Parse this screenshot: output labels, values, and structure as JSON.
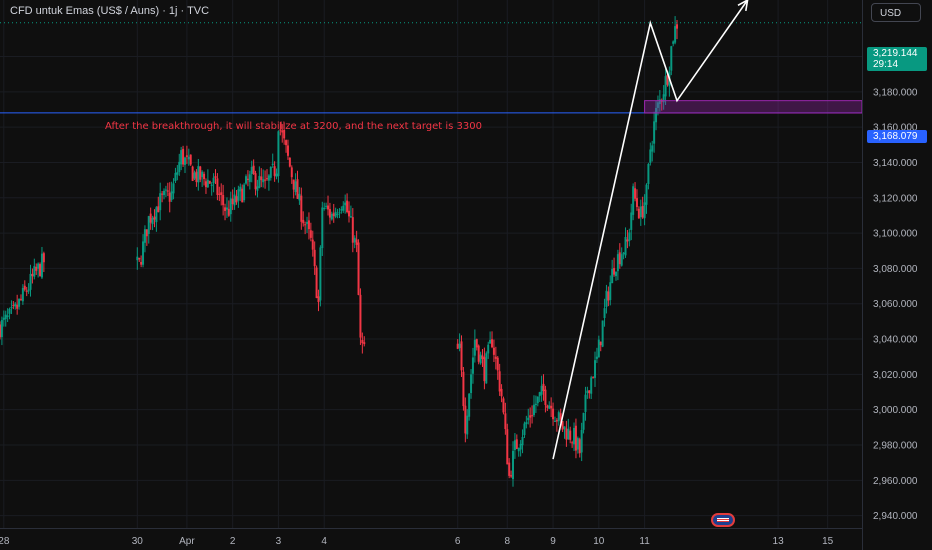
{
  "header": {
    "title": "CFD untuk Emas (US$ / Auns) · 1j · TVC",
    "currency": "USD"
  },
  "annotation": "After the breakthrough, it will stabilize at 3200, and the next target is 3300",
  "price_tag": {
    "price": "3,219.144",
    "countdown": "29:14"
  },
  "level_tag": "3,168.079",
  "colors": {
    "bg": "#0f0f0f",
    "up": "#089981",
    "down": "#f23645",
    "level": "#2962ff",
    "zone": "#9c27b0",
    "arrow": "#ffffff"
  },
  "icons": {
    "event": "us-flag-icon"
  },
  "chart_data": {
    "type": "candlestick",
    "ylim": [
      2933,
      3232
    ],
    "x_range": [
      "Mar 27 22:00",
      "Apr 15 18:00"
    ],
    "x_ticks": [
      {
        "label": "28",
        "t": "Mar 28 00:00"
      },
      {
        "label": "30",
        "t": "Mar 30 22:00"
      },
      {
        "label": "Apr",
        "t": "Apr 01 00:00"
      },
      {
        "label": "2",
        "t": "Apr 02 00:00"
      },
      {
        "label": "3",
        "t": "Apr 03 00:00"
      },
      {
        "label": "4",
        "t": "Apr 04 00:00"
      },
      {
        "label": "6",
        "t": "Apr 06 22:00"
      },
      {
        "label": "8",
        "t": "Apr 08 00:00"
      },
      {
        "label": "9",
        "t": "Apr 09 00:00"
      },
      {
        "label": "10",
        "t": "Apr 10 00:00"
      },
      {
        "label": "11",
        "t": "Apr 11 00:00"
      },
      {
        "label": "13",
        "t": "Apr 13 22:00"
      },
      {
        "label": "15",
        "t": "Apr 15 00:00"
      }
    ],
    "y_ticks": [
      2940,
      2960,
      2980,
      3000,
      3020,
      3040,
      3060,
      3080,
      3100,
      3120,
      3140,
      3160,
      3180,
      3200
    ],
    "close_path": [
      [
        "Mar 27 22:00",
        3047
      ],
      [
        "Mar 28 05:00",
        3054
      ],
      [
        "Mar 28 16:00",
        3076
      ],
      [
        "Mar 28 21:00",
        3084
      ],
      [
        "Mar 30 23:00",
        3082
      ],
      [
        "Mar 31 04:00",
        3108
      ],
      [
        "Mar 31 10:00",
        3118
      ],
      [
        "Mar 31 16:00",
        3122
      ],
      [
        "Mar 31 21:00",
        3144
      ],
      [
        "Apr 01 04:00",
        3133
      ],
      [
        "Apr 01 14:00",
        3128
      ],
      [
        "Apr 01 21:00",
        3112
      ],
      [
        "Apr 02 03:00",
        3120
      ],
      [
        "Apr 02 10:00",
        3132
      ],
      [
        "Apr 02 17:00",
        3126
      ],
      [
        "Apr 02 23:00",
        3138
      ],
      [
        "Apr 03 00:00",
        3163
      ],
      [
        "Apr 03 05:00",
        3142
      ],
      [
        "Apr 03 12:00",
        3112
      ],
      [
        "Apr 03 17:00",
        3095
      ],
      [
        "Apr 03 21:00",
        3060
      ],
      [
        "Apr 03 23:00",
        3115
      ],
      [
        "Apr 04 04:00",
        3110
      ],
      [
        "Apr 04 10:00",
        3120
      ],
      [
        "Apr 04 14:00",
        3104
      ],
      [
        "Apr 04 17:00",
        3090
      ],
      [
        "Apr 04 19:00",
        3038
      ],
      [
        "Apr 04 23:00",
        3028
      ],
      [
        "Apr 06 23:00",
        3033
      ],
      [
        "Apr 07 02:00",
        2992
      ],
      [
        "Apr 07 07:00",
        3040
      ],
      [
        "Apr 07 12:00",
        3022
      ],
      [
        "Apr 07 16:00",
        3040
      ],
      [
        "Apr 07 21:00",
        3008
      ],
      [
        "Apr 08 01:00",
        2962
      ],
      [
        "Apr 08 04:00",
        2978
      ],
      [
        "Apr 08 09:00",
        2990
      ],
      [
        "Apr 08 14:00",
        3002
      ],
      [
        "Apr 08 19:00",
        3010
      ],
      [
        "Apr 08 23:00",
        3002
      ],
      [
        "Apr 09 05:00",
        2990
      ],
      [
        "Apr 09 11:00",
        2984
      ],
      [
        "Apr 09 14:00",
        2976
      ],
      [
        "Apr 09 18:00",
        3012
      ],
      [
        "Apr 09 23:00",
        3028
      ],
      [
        "Apr 10 04:00",
        3062
      ],
      [
        "Apr 10 08:00",
        3082
      ],
      [
        "Apr 10 12:00",
        3090
      ],
      [
        "Apr 10 15:00",
        3094
      ],
      [
        "Apr 10 18:00",
        3122
      ],
      [
        "Apr 10 22:00",
        3110
      ],
      [
        "Apr 11 01:00",
        3122
      ],
      [
        "Apr 11 03:00",
        3148
      ],
      [
        "Apr 11 06:00",
        3168
      ],
      [
        "Apr 11 09:00",
        3178
      ],
      [
        "Apr 11 12:00",
        3190
      ],
      [
        "Apr 11 15:00",
        3212
      ],
      [
        "Apr 11 17:00",
        3219
      ]
    ],
    "hline": 3168.079,
    "hline_price_dotted": 3219.144,
    "zone": {
      "t_start": "Apr 11 00:00",
      "t_end": "Apr 15 18:00",
      "y_low": 3168,
      "y_high": 3175
    },
    "projection": [
      [
        "Apr 09 00:00",
        2972
      ],
      [
        "Apr 11 03:00",
        3219
      ],
      [
        "Apr 11 17:00",
        3175
      ],
      [
        "Apr 13 06:00",
        3232
      ]
    ]
  }
}
